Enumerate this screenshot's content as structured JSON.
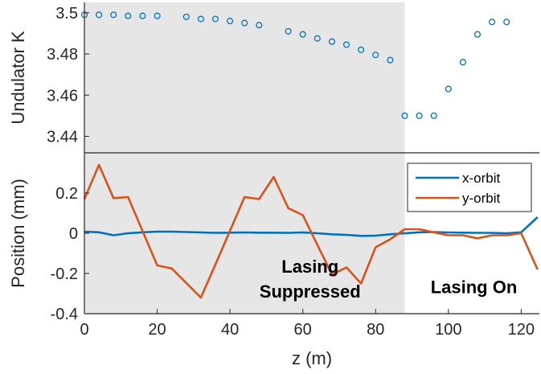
{
  "chart_data": [
    {
      "type": "scatter",
      "title": "",
      "xlabel": "",
      "ylabel": "Undulator K",
      "xlim": [
        0,
        125
      ],
      "ylim": [
        3.432,
        3.505
      ],
      "yticks": [
        3.44,
        3.46,
        3.48,
        3.5
      ],
      "ytick_labels": [
        "3.44",
        "3.46",
        "3.48",
        "3.5"
      ],
      "grid": false,
      "marker": "open-circle",
      "color": "#0072BD",
      "x": [
        0,
        4,
        8,
        12,
        16,
        20,
        28,
        32,
        36,
        40,
        44,
        48,
        56,
        60,
        64,
        68,
        72,
        76,
        80,
        84,
        88,
        92,
        96,
        100,
        104,
        108,
        112,
        116
      ],
      "y": [
        3.499,
        3.499,
        3.499,
        3.4985,
        3.4985,
        3.4985,
        3.498,
        3.497,
        3.497,
        3.496,
        3.495,
        3.494,
        3.491,
        3.4895,
        3.4875,
        3.486,
        3.4845,
        3.482,
        3.4795,
        3.477,
        3.45,
        3.45,
        3.45,
        3.463,
        3.476,
        3.4895,
        3.4955,
        3.4955
      ],
      "shaded_region": {
        "x": [
          0,
          88
        ],
        "color": "#e6e6e6"
      }
    },
    {
      "type": "line",
      "title": "",
      "xlabel": "z (m)",
      "ylabel": "Position (mm)",
      "xlim": [
        0,
        125
      ],
      "ylim": [
        -0.4,
        0.4
      ],
      "xticks": [
        0,
        20,
        40,
        60,
        80,
        100,
        120
      ],
      "xtick_labels": [
        "0",
        "20",
        "40",
        "60",
        "80",
        "100",
        "120"
      ],
      "yticks": [
        -0.4,
        -0.2,
        0,
        0.2
      ],
      "ytick_labels": [
        "-0.4",
        "-0.2",
        "0",
        "0.2"
      ],
      "grid": false,
      "legend_position": "top-right",
      "shaded_region": {
        "x": [
          0,
          88
        ],
        "color": "#e6e6e6"
      },
      "annotations": [
        {
          "lines": [
            "Lasing",
            "Suppressed"
          ],
          "x": 62,
          "y": -0.225
        },
        {
          "lines": [
            "Lasing On"
          ],
          "x": 107,
          "y": -0.265
        }
      ],
      "series": [
        {
          "name": "x-orbit",
          "color": "#0072BD",
          "x": [
            0,
            4,
            8,
            12,
            16,
            20,
            24,
            28,
            32,
            36,
            40,
            44,
            48,
            52,
            56,
            60,
            64,
            68,
            72,
            76,
            80,
            84,
            88,
            92,
            96,
            100,
            104,
            108,
            112,
            116,
            120,
            124.5
          ],
          "values": [
            0.008,
            0.005,
            -0.01,
            0.0,
            0.005,
            0.008,
            0.008,
            0.006,
            0.004,
            0.002,
            0.003,
            0.004,
            0.003,
            0.003,
            0.002,
            0.004,
            0.0,
            -0.005,
            -0.008,
            -0.013,
            -0.012,
            -0.005,
            0.0,
            0.005,
            0.006,
            0.004,
            0.003,
            0.002,
            0.002,
            0.0,
            0.005,
            0.08
          ]
        },
        {
          "name": "y-orbit",
          "color": "#D95319",
          "x": [
            0,
            4,
            8,
            12,
            20,
            24,
            32,
            36,
            44,
            48,
            52,
            56,
            60,
            68,
            72,
            76,
            80,
            84,
            88,
            92,
            96,
            100,
            104,
            108,
            112,
            116,
            120,
            124.5
          ],
          "values": [
            0.17,
            0.34,
            0.175,
            0.18,
            -0.16,
            -0.175,
            -0.32,
            -0.155,
            0.18,
            0.17,
            0.28,
            0.125,
            0.09,
            -0.205,
            -0.17,
            -0.25,
            -0.07,
            -0.03,
            0.02,
            0.02,
            0.005,
            -0.01,
            -0.01,
            -0.025,
            -0.01,
            -0.01,
            0.0,
            -0.18
          ]
        }
      ]
    }
  ]
}
